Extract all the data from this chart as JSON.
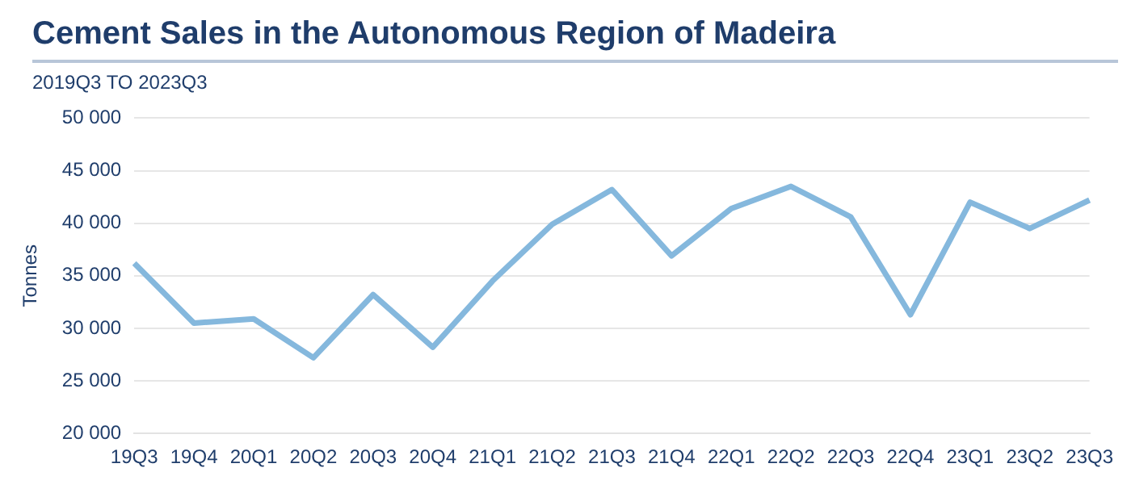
{
  "chart_data": {
    "type": "line",
    "title": "Cement Sales in the Autonomous Region of Madeira",
    "subtitle": "2019Q3 TO 2023Q3",
    "ylabel": "Tonnes",
    "categories": [
      "19Q3",
      "19Q4",
      "20Q1",
      "20Q2",
      "20Q3",
      "20Q4",
      "21Q1",
      "21Q2",
      "21Q3",
      "21Q4",
      "22Q1",
      "22Q2",
      "22Q3",
      "22Q4",
      "23Q1",
      "23Q2",
      "23Q3"
    ],
    "series": [
      {
        "color": "#85b8dd",
        "values": [
          36200,
          30500,
          30900,
          27200,
          33200,
          28200,
          34500,
          39900,
          43200,
          36900,
          41400,
          43500,
          40600,
          31300,
          42000,
          39500,
          42200
        ]
      }
    ],
    "ylim": [
      20000,
      50000
    ],
    "yticks": [
      {
        "value": 20000,
        "label": "20 000"
      },
      {
        "value": 25000,
        "label": "25 000"
      },
      {
        "value": 30000,
        "label": "30 000"
      },
      {
        "value": 35000,
        "label": "35 000"
      },
      {
        "value": 40000,
        "label": "40 000"
      },
      {
        "value": 45000,
        "label": "45 000"
      },
      {
        "value": 50000,
        "label": "50 000"
      }
    ],
    "grid": "y",
    "legend": false,
    "marker": "none",
    "line_style": "solid"
  }
}
